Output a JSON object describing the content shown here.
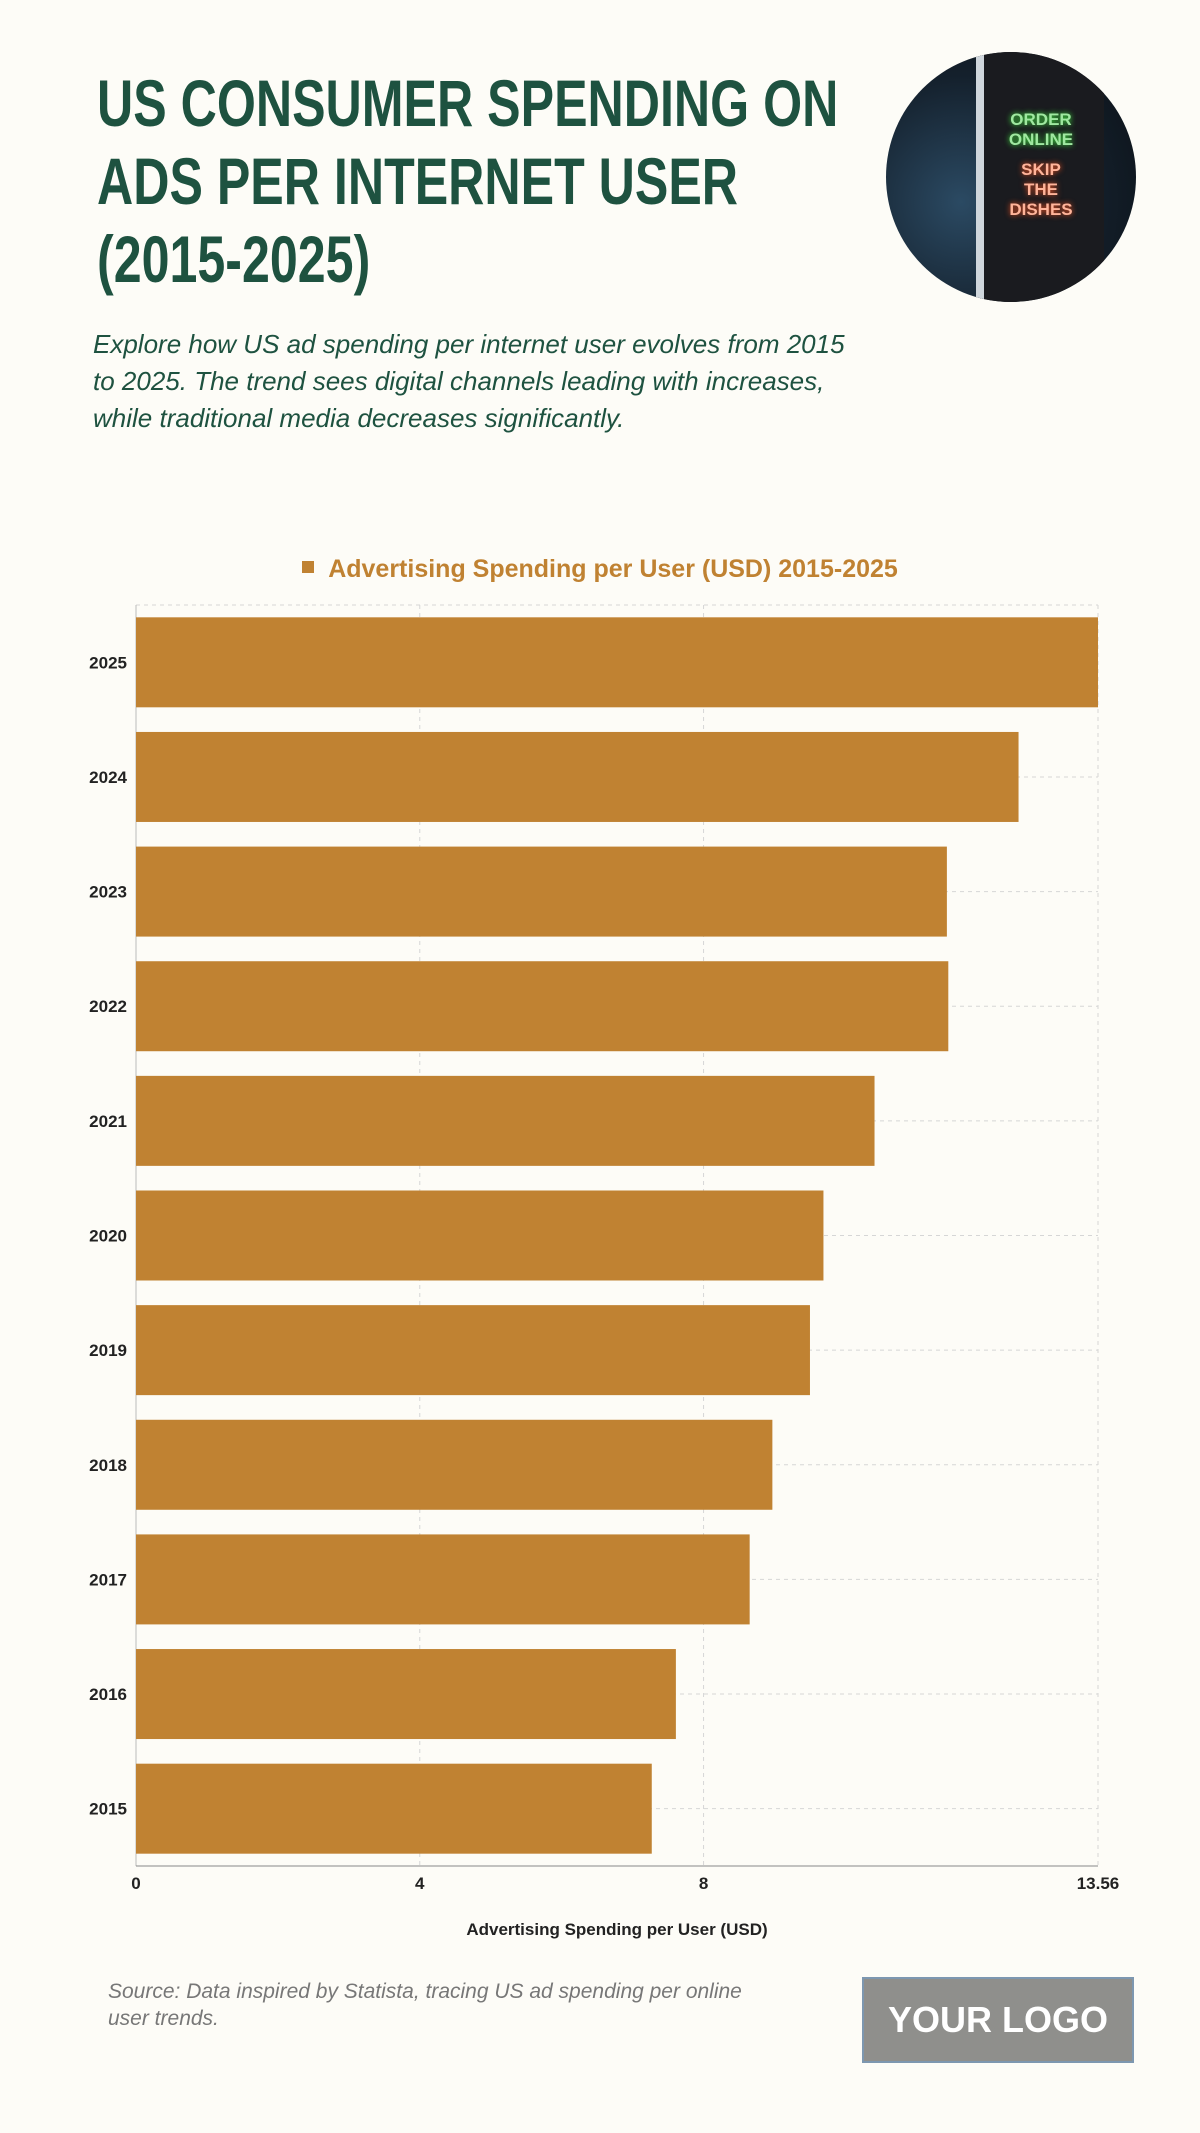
{
  "header": {
    "title_lines": [
      "US CONSUMER SPENDING ON",
      "ADS PER INTERNET USER",
      "(2015-2025)"
    ],
    "subtitle": "Explore how US ad spending per internet user evolves from 2015 to 2025. The trend sees digital channels leading with increases, while traditional media decreases significantly.",
    "image_sign_text": [
      "ORDER",
      "ONLINE",
      "SKIP",
      "THE",
      "DISHES"
    ]
  },
  "colors": {
    "background": "#fdfcf7",
    "title": "#1e5240",
    "bar": "#c08232",
    "grid": "#d6d6d6"
  },
  "chart_data": {
    "type": "bar",
    "orientation": "horizontal",
    "legend": "Advertising Spending per User (USD) 2015-2025",
    "legend_position": "top",
    "categories": [
      "2025",
      "2024",
      "2023",
      "2022",
      "2021",
      "2020",
      "2019",
      "2018",
      "2017",
      "2016",
      "2015"
    ],
    "series": [
      {
        "name": "Advertising Spending per User (USD) 2015-2025",
        "values": [
          13.56,
          12.44,
          11.43,
          11.45,
          10.41,
          9.69,
          9.5,
          8.97,
          8.65,
          7.61,
          7.27
        ]
      }
    ],
    "xlabel": "Advertising Spending per User (USD)",
    "ylabel": "",
    "xlim": [
      0,
      13.56
    ],
    "xticks": [
      "0",
      "4",
      "8",
      "13.56"
    ],
    "grid": true
  },
  "footer": {
    "source": "Source: Data inspired by Statista, tracing US ad spending per online user trends.",
    "logo": "YOUR LOGO"
  }
}
